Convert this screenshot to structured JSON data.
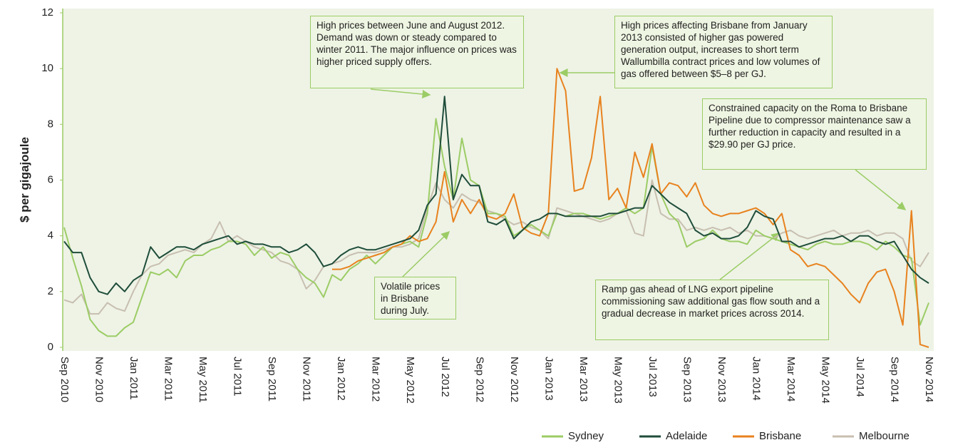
{
  "chart_data": {
    "type": "line",
    "ylabel": "$ per gigajoule",
    "categories": [
      "Sep 2010",
      null,
      null,
      null,
      "Nov 2010",
      null,
      null,
      null,
      "Jan 2011",
      null,
      null,
      null,
      "Mar 2011",
      null,
      null,
      null,
      "May 2011",
      null,
      null,
      null,
      "Jul 2011",
      null,
      null,
      null,
      "Sep 2011",
      null,
      null,
      null,
      "Nov 2011",
      null,
      null,
      null,
      "Jan 2012",
      null,
      null,
      null,
      "Mar 2012",
      null,
      null,
      null,
      "May 2012",
      null,
      null,
      null,
      "Jul 2012",
      null,
      null,
      null,
      "Sep 2012",
      null,
      null,
      null,
      "Nov 2012",
      null,
      null,
      null,
      "Jan 2013",
      null,
      null,
      null,
      "Mar 2013",
      null,
      null,
      null,
      "May 2013",
      null,
      null,
      null,
      "Jul 2013",
      null,
      null,
      null,
      "Sep 2013",
      null,
      null,
      null,
      "Nov 2013",
      null,
      null,
      null,
      "Jan 2014",
      null,
      null,
      null,
      "Mar 2014",
      null,
      null,
      null,
      "May 2014",
      null,
      null,
      null,
      "Jul 2014",
      null,
      null,
      null,
      "Sep 2014",
      null,
      null,
      null,
      "Nov 2014"
    ],
    "ylim": [
      0,
      12
    ],
    "yticks": [
      0,
      2,
      4,
      6,
      8,
      10,
      12
    ],
    "series": [
      {
        "name": "Sydney",
        "color": "#9ccc65",
        "values": [
          4.3,
          3.2,
          2.2,
          1.0,
          0.6,
          0.4,
          0.4,
          0.7,
          0.9,
          1.8,
          2.7,
          2.6,
          2.8,
          2.5,
          3.1,
          3.3,
          3.3,
          3.5,
          3.6,
          3.8,
          3.8,
          3.7,
          3.3,
          3.6,
          3.2,
          3.4,
          3.3,
          2.8,
          2.5,
          2.3,
          1.8,
          2.6,
          2.4,
          2.8,
          3.0,
          3.3,
          3.0,
          3.3,
          3.6,
          3.7,
          3.8,
          3.6,
          4.8,
          8.2,
          6.5,
          5.3,
          7.5,
          6.0,
          5.8,
          4.8,
          4.8,
          4.7,
          4.0,
          4.2,
          4.4,
          4.2,
          4.0,
          4.8,
          4.7,
          4.8,
          4.8,
          4.7,
          4.6,
          4.7,
          4.8,
          5.0,
          4.8,
          5.0,
          7.2,
          5.5,
          4.8,
          4.5,
          3.6,
          3.8,
          3.9,
          4.2,
          3.9,
          3.8,
          3.8,
          3.7,
          4.2,
          4.0,
          3.9,
          3.8,
          3.7,
          3.6,
          3.5,
          3.7,
          3.8,
          3.7,
          3.7,
          3.8,
          3.8,
          3.7,
          3.5,
          3.8,
          3.6,
          3.3,
          3.2,
          0.8,
          1.6
        ]
      },
      {
        "name": "Adelaide",
        "color": "#1f4d3a",
        "values": [
          3.8,
          3.4,
          3.4,
          2.5,
          2.0,
          1.9,
          2.3,
          2.0,
          2.4,
          2.6,
          3.6,
          3.2,
          3.4,
          3.6,
          3.6,
          3.5,
          3.7,
          3.8,
          3.9,
          4.0,
          3.7,
          3.8,
          3.7,
          3.7,
          3.6,
          3.6,
          3.4,
          3.5,
          3.7,
          3.4,
          2.9,
          3.0,
          3.3,
          3.5,
          3.6,
          3.5,
          3.5,
          3.6,
          3.7,
          3.8,
          3.9,
          4.2,
          5.1,
          5.5,
          9.0,
          5.3,
          6.2,
          5.8,
          5.8,
          4.5,
          4.4,
          4.6,
          3.9,
          4.2,
          4.5,
          4.6,
          4.8,
          4.8,
          4.7,
          4.7,
          4.7,
          4.7,
          4.7,
          4.8,
          4.8,
          4.9,
          5.0,
          5.0,
          5.8,
          5.5,
          5.2,
          5.0,
          4.8,
          4.2,
          4.0,
          4.1,
          3.9,
          3.9,
          4.0,
          4.3,
          4.9,
          4.7,
          4.6,
          3.8,
          3.8,
          3.6,
          3.7,
          3.8,
          3.9,
          3.9,
          4.0,
          3.8,
          4.0,
          4.0,
          3.8,
          3.7,
          3.8,
          3.3,
          2.8,
          2.5,
          2.3
        ]
      },
      {
        "name": "Brisbane",
        "color": "#e8821e",
        "values": [
          null,
          null,
          null,
          null,
          null,
          null,
          null,
          null,
          null,
          null,
          null,
          null,
          null,
          null,
          null,
          null,
          null,
          null,
          null,
          null,
          null,
          null,
          null,
          null,
          null,
          null,
          null,
          null,
          null,
          null,
          null,
          2.8,
          2.8,
          2.9,
          3.1,
          3.2,
          3.3,
          3.4,
          3.6,
          3.7,
          4.0,
          3.8,
          3.9,
          4.5,
          6.3,
          4.5,
          5.3,
          4.8,
          5.3,
          4.7,
          4.6,
          4.8,
          5.5,
          4.3,
          4.1,
          4.0,
          4.8,
          10.0,
          9.2,
          5.6,
          5.7,
          6.8,
          9.0,
          5.3,
          5.7,
          5.0,
          7.0,
          6.1,
          7.3,
          5.5,
          5.9,
          5.8,
          5.4,
          5.9,
          5.1,
          4.8,
          4.7,
          4.8,
          4.8,
          4.9,
          5.0,
          4.8,
          4.4,
          4.8,
          3.5,
          3.3,
          2.9,
          3.0,
          2.9,
          2.6,
          2.3,
          1.9,
          1.6,
          2.3,
          2.7,
          2.8,
          2.0,
          0.8,
          4.9,
          0.1,
          0.0
        ]
      },
      {
        "name": "Melbourne",
        "color": "#c8bfb0",
        "values": [
          1.7,
          1.6,
          1.9,
          1.2,
          1.2,
          1.6,
          1.4,
          1.3,
          2.0,
          2.6,
          2.9,
          3.0,
          3.3,
          3.4,
          3.5,
          3.4,
          3.7,
          3.9,
          4.5,
          3.8,
          4.0,
          3.8,
          3.6,
          3.5,
          3.4,
          3.1,
          3.0,
          2.8,
          2.1,
          2.4,
          2.9,
          3.0,
          3.1,
          3.3,
          3.4,
          3.4,
          3.4,
          3.5,
          3.6,
          3.6,
          3.7,
          3.9,
          5.0,
          5.9,
          5.3,
          5.0,
          5.5,
          5.3,
          5.2,
          4.9,
          4.8,
          4.6,
          4.4,
          4.5,
          4.3,
          4.2,
          3.9,
          5.0,
          4.9,
          4.8,
          4.7,
          4.6,
          4.5,
          4.6,
          4.8,
          4.9,
          4.1,
          4.0,
          6.0,
          4.8,
          4.6,
          4.6,
          4.2,
          4.3,
          4.2,
          4.3,
          4.2,
          4.3,
          4.1,
          4.2,
          4.0,
          4.0,
          3.9,
          4.1,
          4.2,
          4.0,
          3.9,
          4.0,
          4.1,
          4.2,
          4.0,
          4.1,
          4.1,
          4.2,
          4.0,
          4.1,
          4.1,
          3.9,
          3.1,
          2.9,
          3.4
        ]
      }
    ],
    "annotations": [
      "High prices between June and August 2012. Demand was down or steady compared to winter 2011. The major influence on prices was higher priced supply offers.",
      "High prices affecting Brisbane from January 2013 consisted of higher gas powered generation output, increases to short term Wallumbilla contract prices and low volumes of gas offered between $5–8 per GJ.",
      "Constrained capacity on the Roma to Brisbane Pipeline due to compressor maintenance saw a further reduction in capacity and resulted in a $29.90 per GJ price.",
      "Volatile prices in Brisbane during July.",
      "Ramp gas ahead of LNG export pipeline commissioning saw additional gas flow south and a gradual decrease in market prices across 2014."
    ]
  }
}
